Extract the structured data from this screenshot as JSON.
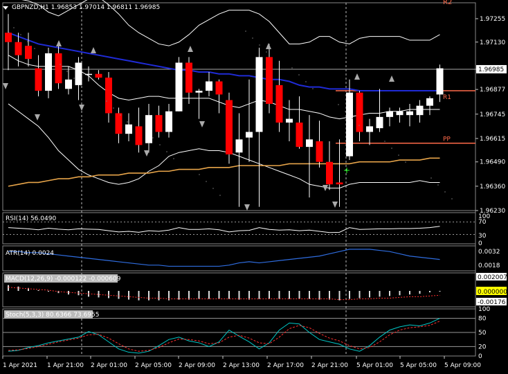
{
  "chart_header": {
    "symbol": "GBPNZD,H1",
    "ohlc": "1.96853 1.97014 1.96811 1.96985"
  },
  "colors": {
    "background": "#000000",
    "bear": "#ff0000",
    "bull": "#ffffff",
    "ma_blue": "#1f2bd6",
    "ma_orange": "#e8a54a",
    "bands": "#ffffff",
    "pivot": "#ff6a4a",
    "grid": "#5a5a5a",
    "rsi": "#ffffff",
    "atr": "#2f6de0",
    "macd_signal": "#ff3030",
    "stoch_main": "#00c8c8",
    "stoch_signal": "#ff3030"
  },
  "price_axis": {
    "ticks": [
      "1.97255",
      "1.97130",
      "1.96985",
      "1.96877",
      "1.96745",
      "1.96615",
      "1.96490",
      "1.96360",
      "1.96230"
    ],
    "current_price": "1.96985"
  },
  "pivot_labels": {
    "r1": "R1",
    "pp": "PP",
    "r2": "R2"
  },
  "time_axis": [
    "1 Apr 2021",
    "1 Apr 21:00",
    "2 Apr 01:00",
    "2 Apr 05:00",
    "2 Apr 09:00",
    "2 Apr 13:00",
    "2 Apr 17:00",
    "2 Apr 21:00",
    "5 Apr 01:00",
    "5 Apr 05:00",
    "5 Apr 09:00"
  ],
  "rsi": {
    "label": "RSI(14) 56.0490",
    "axis": [
      "100",
      "70",
      "30",
      "0"
    ]
  },
  "atr": {
    "label": "ATR(14) 0.0024",
    "axis": [
      "0.0032",
      "0.0018"
    ]
  },
  "macd": {
    "label": "MACD(12,26,9) -0.000122 -0.000609",
    "axis": [
      "0.002007",
      "0.000000",
      "-0.00176"
    ]
  },
  "stoch": {
    "label": "Stoch(5,3,3) 80.6366 73.6955",
    "axis": [
      "100",
      "80",
      "50",
      "20",
      "0"
    ]
  },
  "chart_data": {
    "type": "candlestick",
    "symbol": "GBPNZD",
    "timeframe": "H1",
    "ylim": [
      1.9623,
      1.9734
    ],
    "candles": [
      {
        "o": 1.9718,
        "h": 1.9728,
        "l": 1.9698,
        "c": 1.9713
      },
      {
        "o": 1.9713,
        "h": 1.9718,
        "l": 1.97,
        "c": 1.9706
      },
      {
        "o": 1.9711,
        "h": 1.9718,
        "l": 1.97,
        "c": 1.9704
      },
      {
        "o": 1.9699,
        "h": 1.9706,
        "l": 1.9684,
        "c": 1.9687
      },
      {
        "o": 1.9687,
        "h": 1.971,
        "l": 1.9683,
        "c": 1.9707
      },
      {
        "o": 1.9707,
        "h": 1.9712,
        "l": 1.9688,
        "c": 1.9691
      },
      {
        "o": 1.9688,
        "h": 1.97,
        "l": 1.9685,
        "c": 1.9693
      },
      {
        "o": 1.969,
        "h": 1.9705,
        "l": 1.9682,
        "c": 1.9702
      },
      {
        "o": 1.9696,
        "h": 1.97,
        "l": 1.9692,
        "c": 1.9696
      },
      {
        "o": 1.9696,
        "h": 1.9698,
        "l": 1.9693,
        "c": 1.9694
      },
      {
        "o": 1.9694,
        "h": 1.9697,
        "l": 1.967,
        "c": 1.9675
      },
      {
        "o": 1.9675,
        "h": 1.9678,
        "l": 1.9659,
        "c": 1.9664
      },
      {
        "o": 1.9664,
        "h": 1.9675,
        "l": 1.966,
        "c": 1.9669
      },
      {
        "o": 1.9668,
        "h": 1.9678,
        "l": 1.9654,
        "c": 1.9658
      },
      {
        "o": 1.9659,
        "h": 1.968,
        "l": 1.9654,
        "c": 1.9674
      },
      {
        "o": 1.9674,
        "h": 1.9679,
        "l": 1.9662,
        "c": 1.9665
      },
      {
        "o": 1.9665,
        "h": 1.968,
        "l": 1.9662,
        "c": 1.9676
      },
      {
        "o": 1.9676,
        "h": 1.9705,
        "l": 1.9676,
        "c": 1.9702
      },
      {
        "o": 1.9702,
        "h": 1.9705,
        "l": 1.968,
        "c": 1.9686
      },
      {
        "o": 1.9686,
        "h": 1.9688,
        "l": 1.9672,
        "c": 1.9687
      },
      {
        "o": 1.9687,
        "h": 1.9697,
        "l": 1.9684,
        "c": 1.9692
      },
      {
        "o": 1.9692,
        "h": 1.9693,
        "l": 1.9675,
        "c": 1.9685
      },
      {
        "o": 1.9682,
        "h": 1.9686,
        "l": 1.9648,
        "c": 1.9653
      },
      {
        "o": 1.9654,
        "h": 1.9675,
        "l": 1.9625,
        "c": 1.9661
      },
      {
        "o": 1.9662,
        "h": 1.9693,
        "l": 1.9649,
        "c": 1.9665
      },
      {
        "o": 1.9665,
        "h": 1.971,
        "l": 1.9625,
        "c": 1.9705
      },
      {
        "o": 1.9705,
        "h": 1.9712,
        "l": 1.9675,
        "c": 1.968
      },
      {
        "o": 1.969,
        "h": 1.9703,
        "l": 1.9665,
        "c": 1.967
      },
      {
        "o": 1.967,
        "h": 1.9682,
        "l": 1.966,
        "c": 1.9672
      },
      {
        "o": 1.967,
        "h": 1.9684,
        "l": 1.9656,
        "c": 1.9657
      },
      {
        "o": 1.9657,
        "h": 1.9674,
        "l": 1.963,
        "c": 1.9661
      },
      {
        "o": 1.966,
        "h": 1.9671,
        "l": 1.9646,
        "c": 1.9649
      },
      {
        "o": 1.9649,
        "h": 1.966,
        "l": 1.9634,
        "c": 1.9637
      },
      {
        "o": 1.9638,
        "h": 1.9661,
        "l": 1.9625,
        "c": 1.9637
      },
      {
        "o": 1.9652,
        "h": 1.9693,
        "l": 1.965,
        "c": 1.9686
      },
      {
        "o": 1.9686,
        "h": 1.9687,
        "l": 1.966,
        "c": 1.9665
      },
      {
        "o": 1.9665,
        "h": 1.9672,
        "l": 1.9658,
        "c": 1.9668
      },
      {
        "o": 1.9667,
        "h": 1.9688,
        "l": 1.9665,
        "c": 1.9673
      },
      {
        "o": 1.9673,
        "h": 1.9678,
        "l": 1.9668,
        "c": 1.9676
      },
      {
        "o": 1.9674,
        "h": 1.9678,
        "l": 1.967,
        "c": 1.9676
      },
      {
        "o": 1.9674,
        "h": 1.968,
        "l": 1.9668,
        "c": 1.9676
      },
      {
        "o": 1.9674,
        "h": 1.9682,
        "l": 1.967,
        "c": 1.9679
      },
      {
        "o": 1.9679,
        "h": 1.9684,
        "l": 1.9674,
        "c": 1.9683
      },
      {
        "o": 1.9685,
        "h": 1.9701,
        "l": 1.9681,
        "c": 1.9699
      }
    ],
    "ma_blue": [
      1.9718,
      1.9716,
      1.9714,
      1.9712,
      1.9711,
      1.971,
      1.9709,
      1.9708,
      1.9707,
      1.9706,
      1.9705,
      1.9704,
      1.9703,
      1.9702,
      1.9701,
      1.97,
      1.9699,
      1.9698,
      1.9698,
      1.9697,
      1.9697,
      1.9696,
      1.9696,
      1.9695,
      1.9695,
      1.9694,
      1.9693,
      1.9693,
      1.9692,
      1.969,
      1.9689,
      1.9689,
      1.9688,
      1.9688,
      1.9688,
      1.9687,
      1.9687,
      1.9687,
      1.9687,
      1.9687,
      1.9687,
      1.9687,
      1.9687,
      1.9687
    ],
    "ma_orange": [
      1.9636,
      1.9637,
      1.9638,
      1.9638,
      1.9639,
      1.964,
      1.964,
      1.9641,
      1.9641,
      1.9642,
      1.9642,
      1.9642,
      1.9643,
      1.9643,
      1.9643,
      1.9644,
      1.9644,
      1.9645,
      1.9645,
      1.9645,
      1.9646,
      1.9646,
      1.9646,
      1.9647,
      1.9647,
      1.9647,
      1.9647,
      1.9647,
      1.9648,
      1.9648,
      1.9648,
      1.9648,
      1.9648,
      1.9648,
      1.9648,
      1.9649,
      1.9649,
      1.9649,
      1.9649,
      1.965,
      1.965,
      1.965,
      1.9651,
      1.9651
    ],
    "bb_upper": [
      1.9738,
      1.9736,
      1.9735,
      1.9733,
      1.9729,
      1.9727,
      1.973,
      1.9733,
      1.9736,
      1.9737,
      1.9733,
      1.9728,
      1.9722,
      1.9718,
      1.9715,
      1.9712,
      1.9711,
      1.9713,
      1.9717,
      1.9722,
      1.9725,
      1.9728,
      1.973,
      1.973,
      1.973,
      1.9728,
      1.9724,
      1.9718,
      1.9712,
      1.9712,
      1.9713,
      1.9716,
      1.9716,
      1.9713,
      1.9712,
      1.9715,
      1.9716,
      1.9716,
      1.9716,
      1.9716,
      1.9714,
      1.9714,
      1.9714,
      1.9717
    ],
    "bb_mid": [
      1.9706,
      1.9703,
      1.9701,
      1.97,
      1.97,
      1.97,
      1.97,
      1.9698,
      1.9695,
      1.969,
      1.9686,
      1.9683,
      1.9682,
      1.9683,
      1.9684,
      1.9684,
      1.9683,
      1.9683,
      1.9683,
      1.9683,
      1.9683,
      1.9681,
      1.9679,
      1.9678,
      1.968,
      1.9682,
      1.9681,
      1.9679,
      1.9677,
      1.9677,
      1.9676,
      1.9675,
      1.9673,
      1.9672,
      1.9673,
      1.9674,
      1.9675,
      1.9675,
      1.9676,
      1.9676,
      1.9677,
      1.9677,
      1.9677,
      1.9677
    ],
    "bb_lower": [
      1.968,
      1.9676,
      1.9672,
      1.9668,
      1.9662,
      1.9655,
      1.965,
      1.9645,
      1.9642,
      1.964,
      1.9638,
      1.9637,
      1.9638,
      1.964,
      1.9644,
      1.9647,
      1.9652,
      1.9654,
      1.9655,
      1.9656,
      1.9655,
      1.9655,
      1.9654,
      1.9652,
      1.965,
      1.9648,
      1.9646,
      1.9644,
      1.9642,
      1.964,
      1.9637,
      1.9636,
      1.9635,
      1.9635,
      1.9637,
      1.9638,
      1.9638,
      1.9638,
      1.9638,
      1.9638,
      1.9638,
      1.9639,
      1.9638,
      1.9638
    ],
    "pivot_levels": {
      "R1": 1.9687,
      "PP": 1.9659
    },
    "current_price": 1.96985
  }
}
